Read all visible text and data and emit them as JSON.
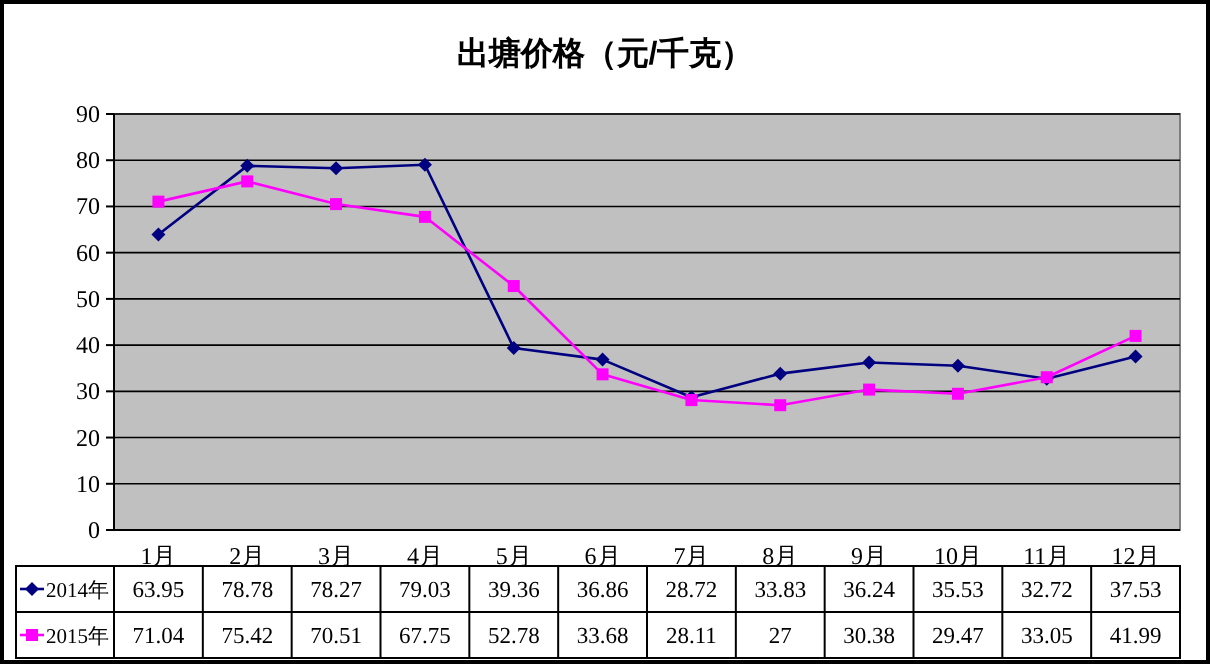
{
  "chart_data": {
    "type": "line",
    "title": "出塘价格（元/千克）",
    "categories": [
      "1月",
      "2月",
      "3月",
      "4月",
      "5月",
      "6月",
      "7月",
      "8月",
      "9月",
      "10月",
      "11月",
      "12月"
    ],
    "series": [
      {
        "name": "2014年",
        "color": "#000080",
        "marker": "diamond",
        "values": [
          63.95,
          78.78,
          78.27,
          79.03,
          39.36,
          36.86,
          28.72,
          33.83,
          36.24,
          35.53,
          32.72,
          37.53
        ]
      },
      {
        "name": "2015年",
        "color": "#ff00ff",
        "marker": "square",
        "values": [
          71.04,
          75.42,
          70.51,
          67.75,
          52.78,
          33.68,
          28.11,
          27,
          30.38,
          29.47,
          33.05,
          41.99
        ]
      }
    ],
    "ylim": [
      0,
      90
    ],
    "yticks": [
      0,
      10,
      20,
      30,
      40,
      50,
      60,
      70,
      80,
      90
    ],
    "grid": "y",
    "legend": "bottom",
    "data_labels": true,
    "line_style": "solid"
  }
}
